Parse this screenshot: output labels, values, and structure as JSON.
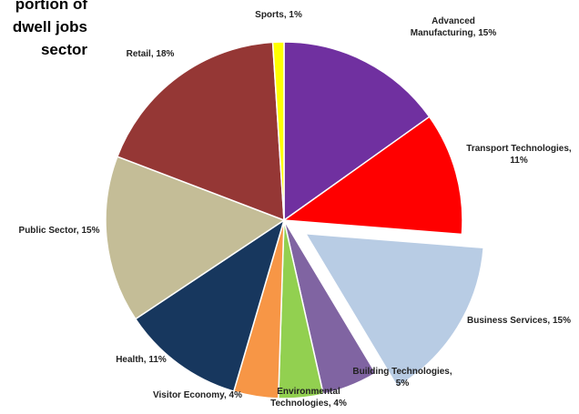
{
  "chart_data": {
    "type": "pie",
    "title_lines": [
      "portion of",
      "dwell jobs",
      "sector"
    ],
    "slices": [
      {
        "label": "Advanced Manufacturing",
        "value": 15,
        "color": "#7030a0",
        "exploded": false
      },
      {
        "label": "Transport Technologies",
        "value": 11,
        "color": "#ff0000",
        "exploded": false
      },
      {
        "label": "Business Services",
        "value": 15,
        "color": "#b8cce4",
        "exploded": true
      },
      {
        "label": "Building Technologies",
        "value": 5,
        "color": "#8064a2",
        "exploded": false
      },
      {
        "label": "Environmental Technologies",
        "value": 4,
        "color": "#92d050",
        "exploded": false
      },
      {
        "label": "Visitor Economy",
        "value": 4,
        "color": "#f79646",
        "exploded": false
      },
      {
        "label": "Health",
        "value": 11,
        "color": "#17375e",
        "exploded": false
      },
      {
        "label": "Public Sector",
        "value": 15,
        "color": "#c4bd97",
        "exploded": false
      },
      {
        "label": "Retail",
        "value": 18,
        "color": "#953735",
        "exploded": false
      },
      {
        "label": "Sports",
        "value": 1,
        "color": "#ffff00",
        "exploded": false
      }
    ],
    "data_labels": [
      {
        "lines": [
          "Sports, 1%"
        ]
      },
      {
        "lines": [
          "Advanced",
          "Manufacturing, 15%"
        ]
      },
      {
        "lines": [
          "Transport Technologies,",
          "11%"
        ]
      },
      {
        "lines": [
          "Business Services, 15%"
        ]
      },
      {
        "lines": [
          "Building Technologies,",
          "5%"
        ]
      },
      {
        "lines": [
          "Environmental",
          "Technologies, 4%"
        ]
      },
      {
        "lines": [
          "Visitor Economy, 4%"
        ]
      },
      {
        "lines": [
          "Health, 11%"
        ]
      },
      {
        "lines": [
          "Public Sector, 15%"
        ]
      },
      {
        "lines": [
          "Retail, 18%"
        ]
      }
    ]
  }
}
